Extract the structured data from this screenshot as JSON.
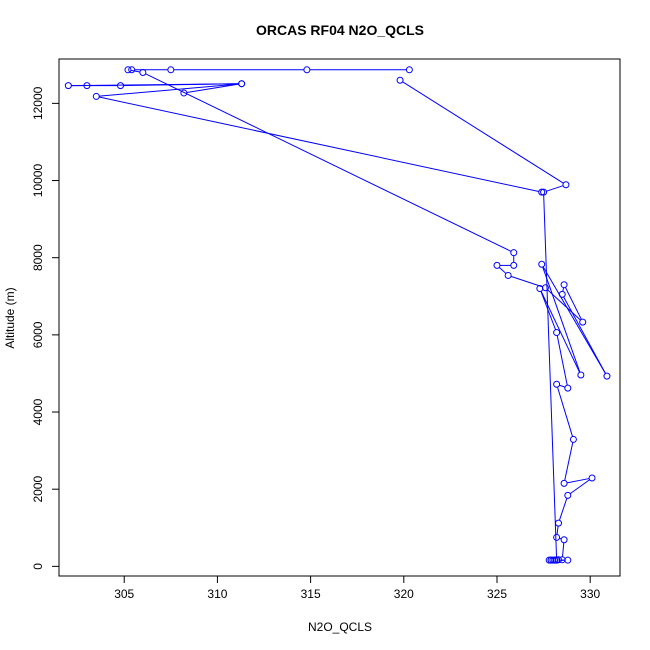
{
  "chart_data": {
    "type": "line",
    "title": "ORCAS RF04 N2O_QCLS",
    "xlabel": "N2O_QCLS",
    "ylabel": "Altitude (m)",
    "xlim": [
      301.5,
      331.6
    ],
    "ylim": [
      -250,
      13150
    ],
    "xticks": [
      305,
      310,
      315,
      320,
      325,
      330
    ],
    "yticks": [
      0,
      2000,
      4000,
      6000,
      8000,
      10000,
      12000
    ],
    "grid": false,
    "color": "#0000ff",
    "series": [
      {
        "x": [
          320.3,
          314.8,
          307.5,
          305.4,
          305.2,
          306.0,
          325.9,
          325.9,
          325.0,
          325.6,
          327.6,
          329.6,
          328.6,
          328.5,
          330.9,
          327.4,
          329.5,
          327.3,
          328.2,
          328.8,
          328.2,
          329.1,
          328.6,
          330.1,
          328.8,
          328.3,
          328.2,
          328.6,
          328.5,
          328.3,
          328.1,
          327.9,
          328.0,
          328.1,
          327.8,
          327.9,
          328.2,
          328.8,
          328.2,
          327.5,
          328.7,
          319.8
        ],
        "y": [
          12870,
          12870,
          12870,
          12870,
          12870,
          12800,
          8130,
          7800,
          7800,
          7540,
          7220,
          6330,
          7300,
          7050,
          4930,
          7830,
          4960,
          7200,
          6060,
          4620,
          4720,
          3290,
          2150,
          2290,
          1840,
          1120,
          750,
          690,
          170,
          170,
          160,
          160,
          160,
          160,
          160,
          160,
          160,
          160,
          160,
          9700,
          9890,
          12600
        ]
      },
      {
        "x": [
          308.2,
          311.3,
          304.8,
          303.0,
          302.0,
          311.3,
          303.5,
          327.4
        ],
        "y": [
          12270,
          12510,
          12460,
          12460,
          12460,
          12510,
          12180,
          9700
        ]
      }
    ]
  }
}
